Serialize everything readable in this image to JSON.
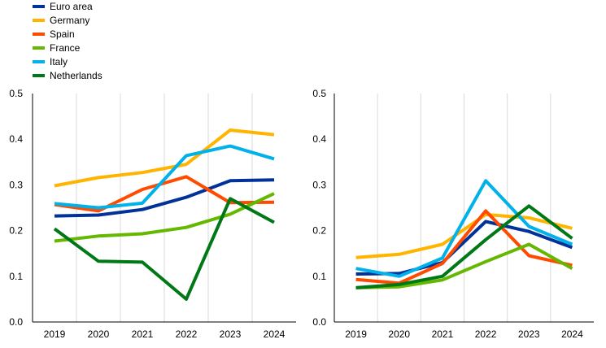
{
  "legend": {
    "placement": "top-left",
    "items": [
      {
        "label": "Euro area",
        "color": "#003299"
      },
      {
        "label": "Germany",
        "color": "#FFB400"
      },
      {
        "label": "Spain",
        "color": "#FF4B00"
      },
      {
        "label": "France",
        "color": "#65B800"
      },
      {
        "label": "Italy",
        "color": "#00B1EA"
      },
      {
        "label": "Netherlands",
        "color": "#007816"
      }
    ]
  },
  "chart_data": [
    {
      "type": "line",
      "title": "",
      "xlabel": "",
      "ylabel": "",
      "x": [
        "2019",
        "2020",
        "2021",
        "2022",
        "2023",
        "2024"
      ],
      "ylim": [
        0,
        0.5
      ],
      "yticks": [
        "0.0",
        "0.1",
        "0.2",
        "0.3",
        "0.4",
        "0.5"
      ],
      "grid": "vertical",
      "series": [
        {
          "name": "Euro area",
          "color": "#003299",
          "values": [
            0.232,
            0.234,
            0.246,
            0.273,
            0.309,
            0.311
          ]
        },
        {
          "name": "Germany",
          "color": "#FFB400",
          "values": [
            0.298,
            0.316,
            0.327,
            0.345,
            0.42,
            0.41
          ]
        },
        {
          "name": "Spain",
          "color": "#FF4B00",
          "values": [
            0.257,
            0.243,
            0.29,
            0.318,
            0.261,
            0.262
          ]
        },
        {
          "name": "France",
          "color": "#65B800",
          "values": [
            0.177,
            0.188,
            0.193,
            0.207,
            0.236,
            0.281
          ]
        },
        {
          "name": "Italy",
          "color": "#00B1EA",
          "values": [
            0.259,
            0.25,
            0.26,
            0.364,
            0.385,
            0.357
          ]
        },
        {
          "name": "Netherlands",
          "color": "#007816",
          "values": [
            0.204,
            0.133,
            0.131,
            0.05,
            0.27,
            0.218
          ]
        }
      ]
    },
    {
      "type": "line",
      "title": "",
      "xlabel": "",
      "ylabel": "",
      "x": [
        "2019",
        "2020",
        "2021",
        "2022",
        "2023",
        "2024"
      ],
      "ylim": [
        0,
        0.5
      ],
      "yticks": [
        "0.0",
        "0.1",
        "0.2",
        "0.3",
        "0.4",
        "0.5"
      ],
      "grid": "vertical",
      "series": [
        {
          "name": "Euro area",
          "color": "#003299",
          "values": [
            0.105,
            0.106,
            0.13,
            0.22,
            0.198,
            0.163
          ]
        },
        {
          "name": "Germany",
          "color": "#FFB400",
          "values": [
            0.141,
            0.148,
            0.17,
            0.235,
            0.228,
            0.205
          ]
        },
        {
          "name": "Spain",
          "color": "#FF4B00",
          "values": [
            0.093,
            0.085,
            0.128,
            0.243,
            0.145,
            0.124
          ]
        },
        {
          "name": "France",
          "color": "#65B800",
          "values": [
            0.075,
            0.077,
            0.092,
            0.132,
            0.17,
            0.117
          ]
        },
        {
          "name": "Italy",
          "color": "#00B1EA",
          "values": [
            0.117,
            0.1,
            0.14,
            0.309,
            0.209,
            0.17
          ]
        },
        {
          "name": "Netherlands",
          "color": "#007816",
          "values": [
            0.075,
            0.082,
            0.1,
            0.18,
            0.254,
            0.183
          ]
        }
      ]
    }
  ]
}
